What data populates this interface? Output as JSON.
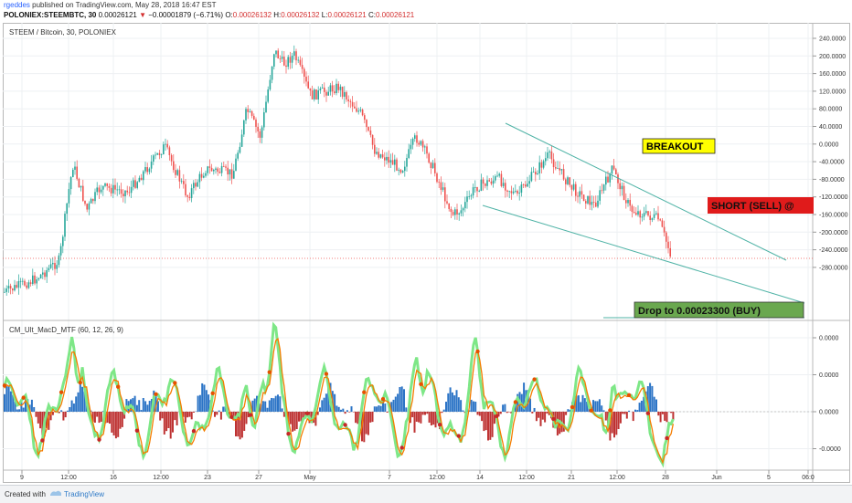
{
  "header": {
    "username": "rgeddes",
    "published_text": "published on TradingView.com, May 28, 2018 16:47 EST",
    "symbol": "POLONIEX:STEEMBTC, 30",
    "last_price": "0.00026121",
    "change_arrow": "▼",
    "change": "−0.00001879 (−6.71%)",
    "o_label": "O:",
    "o_value": "0.00026132",
    "h_label": "H:",
    "h_value": "0.00026132",
    "l_label": "L:",
    "l_value": "0.00026121",
    "c_label": "C:",
    "c_value": "0.00026121"
  },
  "main_pane": {
    "title": "STEEM / Bitcoin, 30, POLONIEX",
    "y_ticks": [
      "240.0000",
      "200.0000",
      "160.0000",
      "120.0000",
      "80.0000",
      "40.0000",
      "0.0000",
      "-40.0000",
      "-80.0000",
      "-120.0000",
      "-160.0000",
      "-200.0000",
      "-240.0000",
      "-280.0000"
    ]
  },
  "annotations": {
    "breakout": "BREAKOUT",
    "short": "SHORT (SELL)  @",
    "drop": "Drop to 0.00023300 (BUY)"
  },
  "indicator_pane": {
    "title": "CM_Ult_MacD_MTF (60, 12, 26, 9)",
    "y_ticks": [
      "0.0000",
      "0.0000",
      "0.0000",
      "-0.0000"
    ]
  },
  "x_axis": {
    "ticks": [
      "9",
      "12:00",
      "16",
      "12:00",
      "23",
      "27",
      "May",
      "7",
      "12:00",
      "14",
      "12:00",
      "21",
      "12:00",
      "28",
      "Jun",
      "5",
      "06:0"
    ]
  },
  "footer": {
    "created_with": "Created with",
    "brand": "TradingView"
  },
  "colors": {
    "up": "#26a69a",
    "down": "#ef5350",
    "trendline": "#4fb3a6",
    "breakout_bg": "#ffff00",
    "short_bg": "#e01b1b",
    "drop_bg": "#6aa84f",
    "hist_up": "#1565c0",
    "hist_down": "#b71c1c",
    "macd_up": "#7ee787",
    "macd_down": "#f57c00"
  }
}
